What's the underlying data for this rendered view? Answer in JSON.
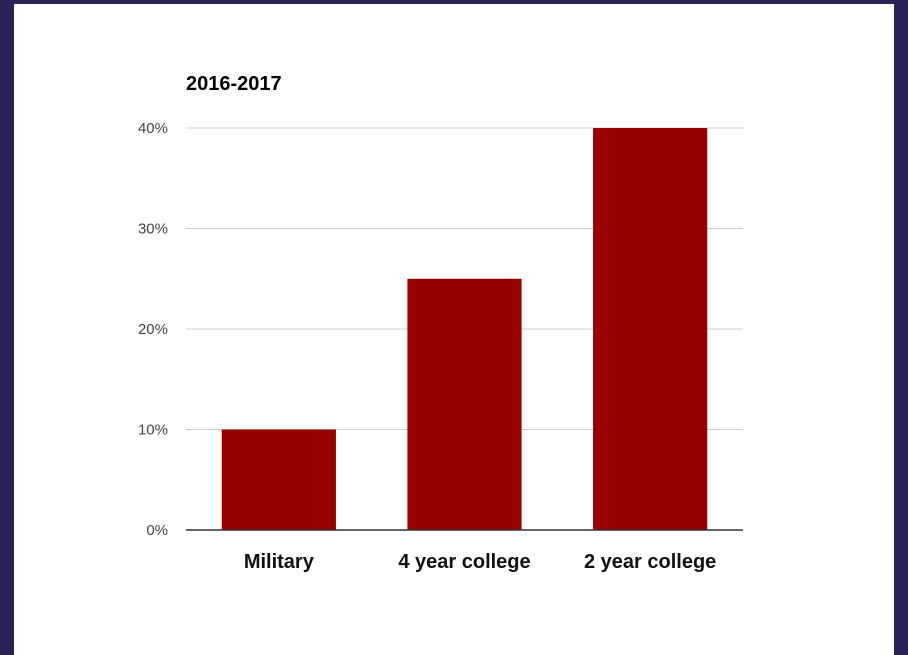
{
  "chart_data": {
    "type": "bar",
    "title": "2016-2017",
    "categories": [
      "Military",
      "4 year college",
      "2 year college"
    ],
    "values": [
      10,
      25,
      40
    ],
    "ylim": [
      0,
      40
    ],
    "yticks": [
      0,
      10,
      20,
      30,
      40
    ],
    "ytick_labels": [
      "0%",
      "10%",
      "20%",
      "30%",
      "40%"
    ],
    "xlabel": "",
    "ylabel": "",
    "grid": true,
    "legend": "none",
    "colors": {
      "bar": "#990000",
      "grid": "#cccccc",
      "axis": "#333333",
      "background": "#ffffff",
      "frame": "#2b2257"
    }
  }
}
